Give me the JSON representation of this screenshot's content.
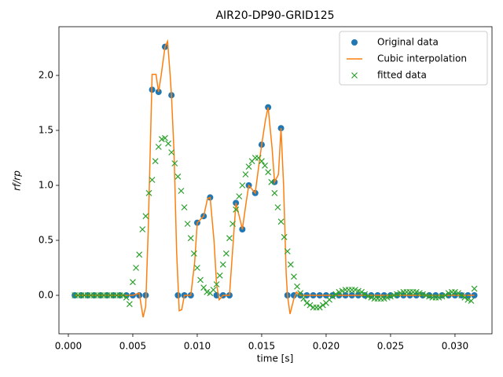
{
  "chart_data": {
    "type": "line",
    "title": "AIR20-DP90-GRID125",
    "xlabel": "time [s]",
    "ylabel": "rf/rp",
    "xlim": [
      -0.00073,
      0.03287
    ],
    "ylim": [
      -0.35,
      2.443
    ],
    "xticks": [
      {
        "value": 0,
        "label": "0.000"
      },
      {
        "value": 0.005,
        "label": "0.005"
      },
      {
        "value": 0.01,
        "label": "0.010"
      },
      {
        "value": 0.015,
        "label": "0.015"
      },
      {
        "value": 0.02,
        "label": "0.020"
      },
      {
        "value": 0.025,
        "label": "0.025"
      },
      {
        "value": 0.03,
        "label": "0.030"
      }
    ],
    "yticks": [
      {
        "value": 0,
        "label": "0.0"
      },
      {
        "value": 0.5,
        "label": "0.5"
      },
      {
        "value": 1,
        "label": "1.0"
      },
      {
        "value": 1.5,
        "label": "1.5"
      },
      {
        "value": 2,
        "label": "2.0"
      }
    ],
    "grid": false,
    "legend": "upper right",
    "series": [
      {
        "name": "Original data",
        "color": "#1f77b4",
        "marker": "o",
        "x": [
          0.0005,
          0.001,
          0.0015,
          0.002,
          0.0025,
          0.003,
          0.0035,
          0.004,
          0.0045,
          0.005,
          0.0055,
          0.006,
          0.0065,
          0.007,
          0.0075,
          0.008,
          0.0085,
          0.009,
          0.0095,
          0.01,
          0.0105,
          0.011,
          0.0115,
          0.012,
          0.0125,
          0.013,
          0.0135,
          0.014,
          0.0145,
          0.015,
          0.0155,
          0.016,
          0.0165,
          0.017,
          0.0175,
          0.018,
          0.0185,
          0.019,
          0.0195,
          0.02,
          0.0205,
          0.021,
          0.0215,
          0.022,
          0.0225,
          0.023,
          0.0235,
          0.024,
          0.0245,
          0.025,
          0.0255,
          0.026,
          0.0265,
          0.027,
          0.0275,
          0.028,
          0.0285,
          0.029,
          0.0295,
          0.03,
          0.0305,
          0.031,
          0.0315
        ],
        "values": [
          0,
          0,
          0,
          0,
          0,
          0,
          0,
          0,
          0,
          0,
          0,
          0,
          1.87,
          1.85,
          2.26,
          1.82,
          0,
          0,
          0,
          0.66,
          0.72,
          0.89,
          0,
          0,
          0,
          0.84,
          0.6,
          1.0,
          0.93,
          1.37,
          1.71,
          1.03,
          1.52,
          0,
          0,
          0,
          0,
          0,
          0,
          0,
          0,
          0,
          0,
          0,
          0,
          0,
          0,
          0,
          0,
          0,
          0,
          0,
          0,
          0,
          0,
          0,
          0,
          0,
          0,
          0,
          0,
          0,
          0
        ]
      },
      {
        "name": "Cubic interpolation",
        "color": "#ff7f0e",
        "marker": "line",
        "x": [
          0.0005,
          0.005,
          0.0055,
          0.0058,
          0.006,
          0.0062,
          0.0065,
          0.0068,
          0.007,
          0.0072,
          0.0075,
          0.0077,
          0.0079,
          0.008,
          0.0082,
          0.0084,
          0.0086,
          0.0088,
          0.009,
          0.0095,
          0.0098,
          0.01,
          0.0105,
          0.0108,
          0.011,
          0.0113,
          0.0115,
          0.0117,
          0.012,
          0.0125,
          0.0128,
          0.013,
          0.0133,
          0.0135,
          0.0138,
          0.014,
          0.0145,
          0.0148,
          0.015,
          0.0153,
          0.0155,
          0.0158,
          0.016,
          0.0163,
          0.0165,
          0.0167,
          0.0169,
          0.017,
          0.0172,
          0.0175,
          0.0177,
          0.018,
          0.0315
        ],
        "values": [
          0,
          0,
          0.02,
          -0.2,
          -0.1,
          0.6,
          2.01,
          2.01,
          1.85,
          2.0,
          2.26,
          2.31,
          2.0,
          1.82,
          1.3,
          0.4,
          -0.14,
          -0.13,
          0,
          0,
          0.3,
          0.66,
          0.72,
          0.88,
          0.89,
          0.5,
          0.1,
          -0.04,
          0,
          0,
          0.5,
          0.84,
          0.7,
          0.6,
          0.85,
          1.0,
          0.93,
          1.2,
          1.37,
          1.6,
          1.71,
          1.35,
          1.03,
          1.1,
          1.52,
          1.0,
          0.2,
          0,
          -0.17,
          -0.03,
          0.03,
          0,
          0
        ]
      },
      {
        "name": "fitted data",
        "color": "#2ca02c",
        "marker": "x",
        "x": [
          0.0005,
          0.00075,
          0.001,
          0.00125,
          0.0015,
          0.00175,
          0.002,
          0.00225,
          0.0025,
          0.00275,
          0.003,
          0.00325,
          0.0035,
          0.00375,
          0.004,
          0.00425,
          0.0045,
          0.00475,
          0.005,
          0.00525,
          0.0055,
          0.00575,
          0.006,
          0.00625,
          0.0065,
          0.00675,
          0.007,
          0.00725,
          0.0075,
          0.00775,
          0.008,
          0.00825,
          0.0085,
          0.00875,
          0.009,
          0.00925,
          0.0095,
          0.00975,
          0.01,
          0.01025,
          0.0105,
          0.01075,
          0.011,
          0.01125,
          0.0115,
          0.01175,
          0.012,
          0.01225,
          0.0125,
          0.01275,
          0.013,
          0.01325,
          0.0135,
          0.01375,
          0.014,
          0.01425,
          0.0145,
          0.01475,
          0.015,
          0.01525,
          0.0155,
          0.01575,
          0.016,
          0.01625,
          0.0165,
          0.01675,
          0.017,
          0.01725,
          0.0175,
          0.01775,
          0.018,
          0.01825,
          0.0185,
          0.01875,
          0.019,
          0.01925,
          0.0195,
          0.01975,
          0.02,
          0.02025,
          0.0205,
          0.02075,
          0.021,
          0.02125,
          0.0215,
          0.02175,
          0.022,
          0.02225,
          0.0225,
          0.02275,
          0.023,
          0.02325,
          0.0235,
          0.02375,
          0.024,
          0.02425,
          0.0245,
          0.02475,
          0.025,
          0.02525,
          0.0255,
          0.02575,
          0.026,
          0.02625,
          0.0265,
          0.02675,
          0.027,
          0.02725,
          0.0275,
          0.02775,
          0.028,
          0.02825,
          0.0285,
          0.02875,
          0.029,
          0.02925,
          0.0295,
          0.02975,
          0.03,
          0.03025,
          0.0305,
          0.03075,
          0.031,
          0.03125,
          0.0315
        ],
        "values": [
          0,
          0,
          0,
          0,
          0,
          0,
          0,
          0,
          0,
          0,
          0,
          0,
          0,
          0,
          0,
          0,
          -0.02,
          -0.08,
          0.12,
          0.25,
          0.37,
          0.6,
          0.72,
          0.93,
          1.05,
          1.22,
          1.35,
          1.42,
          1.43,
          1.38,
          1.3,
          1.2,
          1.08,
          0.95,
          0.8,
          0.65,
          0.52,
          0.38,
          0.25,
          0.14,
          0.07,
          0.03,
          0.02,
          0.05,
          0.1,
          0.18,
          0.28,
          0.38,
          0.52,
          0.65,
          0.78,
          0.9,
          1.0,
          1.1,
          1.17,
          1.22,
          1.25,
          1.25,
          1.22,
          1.18,
          1.12,
          1.03,
          0.93,
          0.8,
          0.67,
          0.53,
          0.4,
          0.28,
          0.17,
          0.08,
          0.02,
          -0.03,
          -0.07,
          -0.09,
          -0.11,
          -0.11,
          -0.11,
          -0.09,
          -0.07,
          -0.04,
          -0.01,
          0.01,
          0.03,
          0.04,
          0.05,
          0.05,
          0.05,
          0.05,
          0.04,
          0.03,
          0.01,
          -0.01,
          -0.02,
          -0.03,
          -0.03,
          -0.03,
          -0.03,
          -0.02,
          -0.01,
          0,
          0.01,
          0.02,
          0.03,
          0.03,
          0.03,
          0.03,
          0.03,
          0.02,
          0.01,
          0,
          -0.01,
          -0.02,
          -0.02,
          -0.02,
          -0.01,
          0,
          0.02,
          0.03,
          0.03,
          0.02,
          0,
          -0.02,
          -0.04,
          -0.05,
          0.06
        ]
      }
    ]
  }
}
